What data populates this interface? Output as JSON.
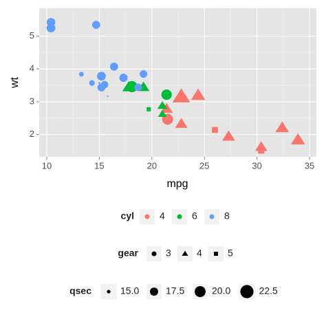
{
  "chart_data": {
    "type": "scatter",
    "x_label": "mpg",
    "y_label": "wt",
    "xlim": [
      9.28,
      35.65
    ],
    "ylim": [
      1.32,
      5.85
    ],
    "xticks": [
      10,
      15,
      20,
      25,
      30,
      35
    ],
    "yticks": [
      2,
      3,
      4,
      5
    ],
    "grid": true,
    "color_legend_title": "cyl",
    "series": [
      {
        "name": "4",
        "color": "#F8766D",
        "x": [
          22.8,
          24.4,
          22.8,
          32.4,
          30.4,
          33.9,
          21.5,
          27.3,
          26.0,
          30.4,
          21.4
        ],
        "y": [
          2.32,
          3.19,
          3.15,
          2.2,
          1.615,
          1.835,
          2.465,
          1.935,
          2.14,
          1.513,
          2.78
        ],
        "gear": [
          4,
          4,
          4,
          4,
          4,
          4,
          3,
          4,
          5,
          5,
          4
        ],
        "size": [
          18.61,
          20.0,
          22.9,
          19.47,
          18.52,
          19.9,
          20.01,
          18.9,
          16.7,
          16.9,
          18.6
        ]
      },
      {
        "name": "6",
        "color": "#00BA38",
        "x": [
          21.0,
          21.0,
          21.4,
          18.1,
          19.2,
          17.8,
          19.7
        ],
        "y": [
          2.62,
          2.875,
          3.215,
          3.46,
          3.44,
          3.44,
          2.77
        ],
        "gear": [
          4,
          4,
          3,
          3,
          4,
          4,
          5
        ],
        "size": [
          16.46,
          17.02,
          19.44,
          20.22,
          18.3,
          18.9,
          15.5
        ]
      },
      {
        "name": "8",
        "color": "#619CFF",
        "x": [
          18.7,
          14.3,
          16.4,
          17.3,
          15.2,
          10.4,
          10.4,
          14.7,
          15.5,
          15.2,
          13.3,
          19.2,
          15.8,
          15.0
        ],
        "y": [
          3.44,
          3.57,
          4.07,
          3.73,
          3.78,
          5.25,
          5.424,
          5.345,
          3.52,
          3.435,
          3.84,
          3.845,
          3.17,
          3.57
        ],
        "gear": [
          3,
          3,
          3,
          3,
          3,
          3,
          3,
          3,
          3,
          3,
          3,
          3,
          5,
          5
        ],
        "size": [
          17.02,
          15.84,
          17.4,
          17.6,
          18.0,
          17.98,
          17.82,
          17.42,
          16.87,
          17.3,
          15.41,
          17.05,
          14.5,
          14.6
        ]
      }
    ],
    "shape_legend": {
      "title": "gear",
      "values": [
        3,
        4,
        5
      ],
      "shapes": [
        "circle",
        "triangle",
        "square"
      ]
    },
    "size_legend": {
      "title": "qsec",
      "breaks": [
        {
          "value": 15,
          "label": "15.0"
        },
        {
          "value": 17.5,
          "label": "17.5"
        },
        {
          "value": 20,
          "label": "20.0"
        },
        {
          "value": 22.5,
          "label": "22.5"
        }
      ]
    }
  }
}
